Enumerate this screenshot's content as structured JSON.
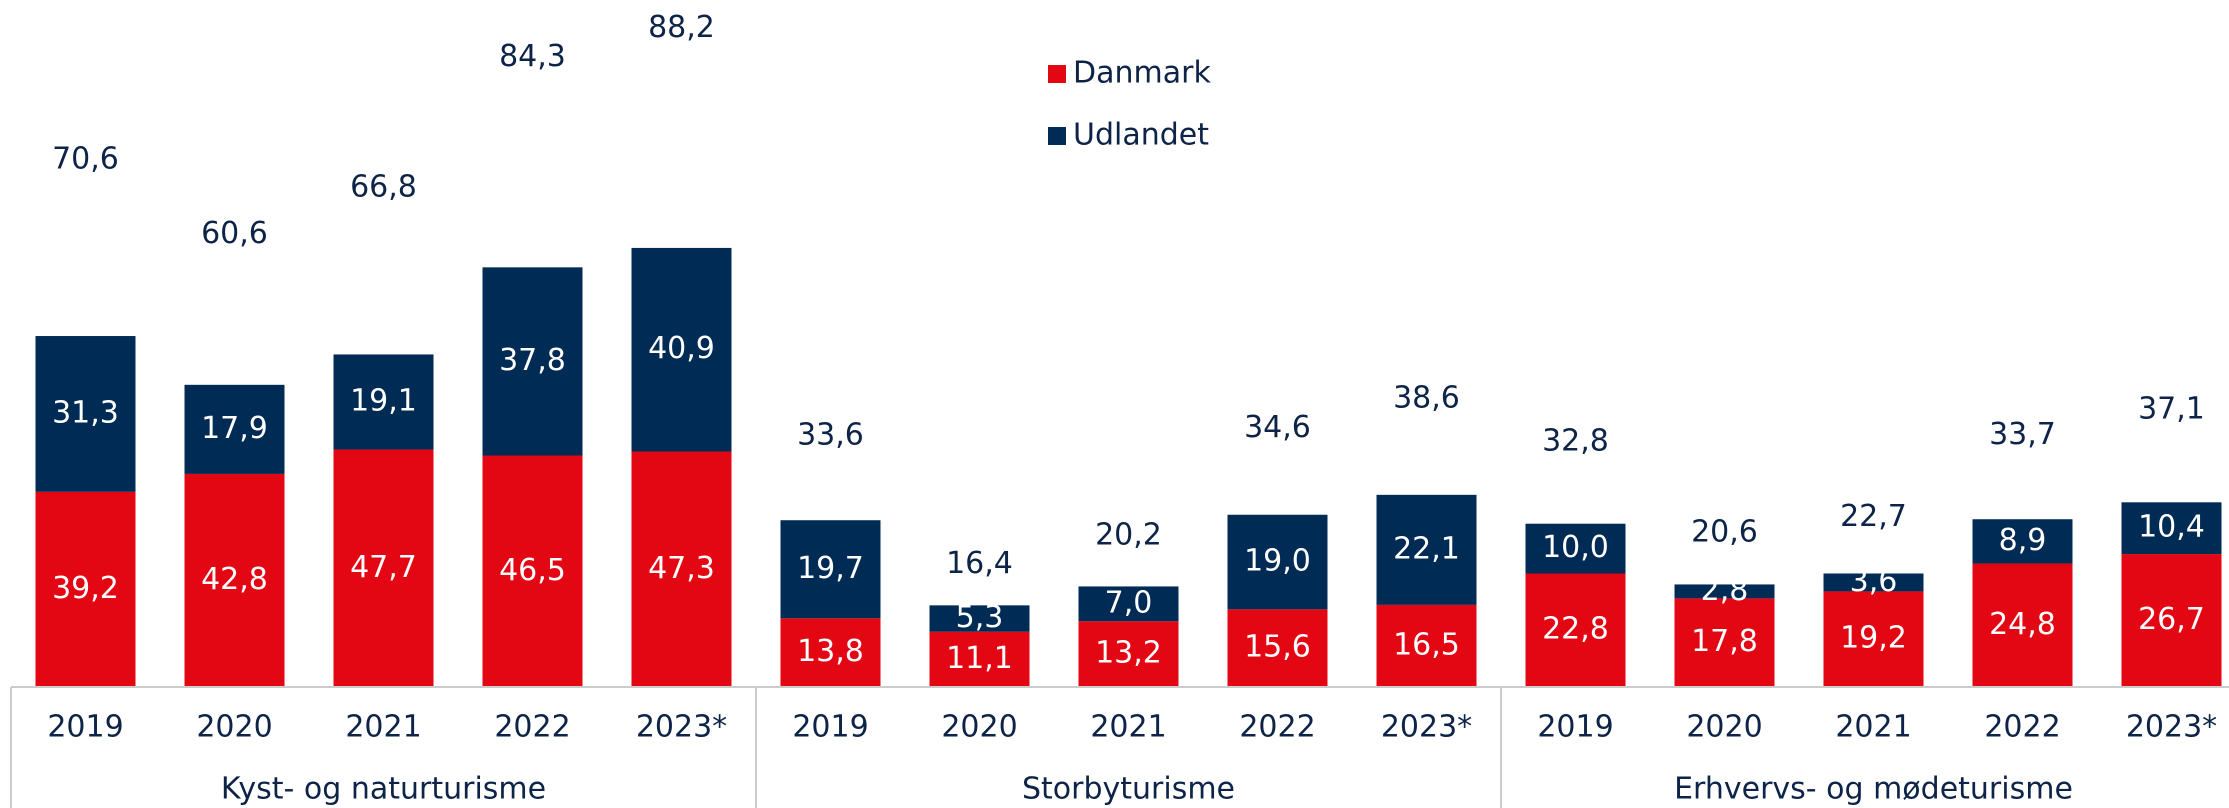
{
  "chart_data": {
    "type": "stacked_bar",
    "categories": [
      "2019",
      "2020",
      "2021",
      "2022",
      "2023*",
      "2019",
      "2020",
      "2021",
      "2022",
      "2023*",
      "2019",
      "2020",
      "2021",
      "2022",
      "2023*"
    ],
    "group_labels": [
      "Kyst- og naturturisme",
      "Storbyturisme",
      "Erhvervs- og mødeturisme"
    ],
    "series": [
      {
        "name": "Danmark",
        "color": "#e30613",
        "values": [
          39.2,
          42.8,
          47.7,
          46.5,
          47.3,
          13.8,
          11.1,
          13.2,
          15.6,
          16.5,
          22.8,
          17.8,
          19.2,
          24.8,
          26.7
        ],
        "value_labels": [
          "39,2",
          "42,8",
          "47,7",
          "46,5",
          "47,3",
          "13,8",
          "11,1",
          "13,2",
          "15,6",
          "16,5",
          "22,8",
          "17,8",
          "19,2",
          "24,8",
          "26,7"
        ]
      },
      {
        "name": "Udlandet",
        "color": "#002b55",
        "values": [
          31.3,
          17.9,
          19.1,
          37.8,
          40.9,
          19.7,
          5.3,
          7.0,
          19.0,
          22.1,
          10.0,
          2.8,
          3.6,
          8.9,
          10.4
        ],
        "value_labels": [
          "31,3",
          "17,9",
          "19,1",
          "37,8",
          "40,9",
          "19,7",
          "5,3",
          "7,0",
          "19,0",
          "22,1",
          "10,0",
          "2,8",
          "3,6",
          "8,9",
          "10,4"
        ]
      }
    ],
    "totals": [
      70.6,
      60.6,
      66.8,
      84.3,
      88.2,
      33.6,
      16.4,
      20.2,
      34.6,
      38.6,
      32.8,
      20.6,
      22.7,
      33.7,
      37.1
    ],
    "total_labels": [
      "70,6",
      "60,6",
      "66,8",
      "84,3",
      "88,2",
      "33,6",
      "16,4",
      "20,2",
      "34,6",
      "38,6",
      "32,8",
      "20,6",
      "22,7",
      "33,7",
      "37,1"
    ],
    "ylim": [
      0,
      138
    ]
  }
}
